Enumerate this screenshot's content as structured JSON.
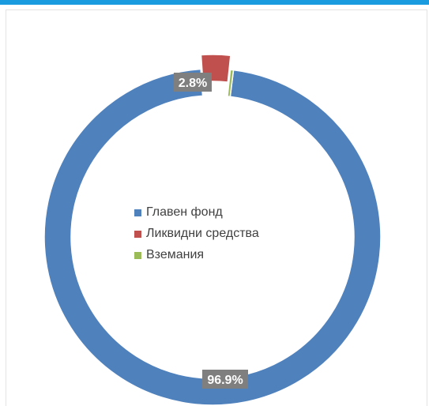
{
  "chart_data": {
    "type": "pie",
    "donut": true,
    "slices": [
      {
        "label": "Главен фонд",
        "value": 96.9,
        "data_label": "96.9%",
        "color": "#4f81bd"
      },
      {
        "label": "Ликвидни средства",
        "value": 2.8,
        "data_label": "2.8%",
        "color": "#c0504d",
        "exploded": true
      },
      {
        "label": "Вземания",
        "value": 0.3,
        "data_label": "",
        "color": "#9bbb59"
      }
    ],
    "legend_position": "center"
  },
  "legend": [
    {
      "label": "Главен фонд",
      "color": "#4f81bd"
    },
    {
      "label": "Ликвидни средства",
      "color": "#c0504d"
    },
    {
      "label": "Вземания",
      "color": "#9bbb59"
    }
  ],
  "colors": {
    "accent_bar": "#1a9be0",
    "label_bg": "#7f7f7f"
  }
}
